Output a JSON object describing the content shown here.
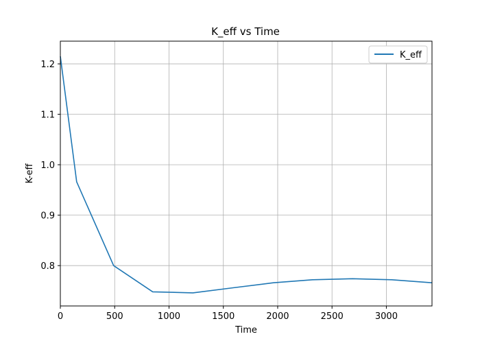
{
  "chart_data": {
    "type": "line",
    "title": "K_eff vs Time",
    "xlabel": "Time",
    "ylabel": "K-eff",
    "xlim": [
      0,
      3420
    ],
    "ylim": [
      0.72,
      1.245
    ],
    "x_ticks": [
      0,
      500,
      1000,
      1500,
      2000,
      2500,
      3000
    ],
    "y_ticks": [
      0.8,
      0.9,
      1.0,
      1.1,
      1.2
    ],
    "x_tick_labels": [
      "0",
      "500",
      "1000",
      "1500",
      "2000",
      "2500",
      "3000"
    ],
    "y_tick_labels": [
      "0.8",
      "0.9",
      "1.0",
      "1.1",
      "1.2"
    ],
    "grid": true,
    "legend_position": "top-right",
    "series": [
      {
        "name": "K_eff",
        "color": "#1f77b4",
        "x": [
          0,
          150,
          490,
          850,
          1220,
          1590,
          1960,
          2320,
          2690,
          3050,
          3420
        ],
        "y": [
          1.215,
          0.966,
          0.8,
          0.748,
          0.746,
          0.756,
          0.766,
          0.772,
          0.774,
          0.772,
          0.766
        ]
      }
    ]
  }
}
